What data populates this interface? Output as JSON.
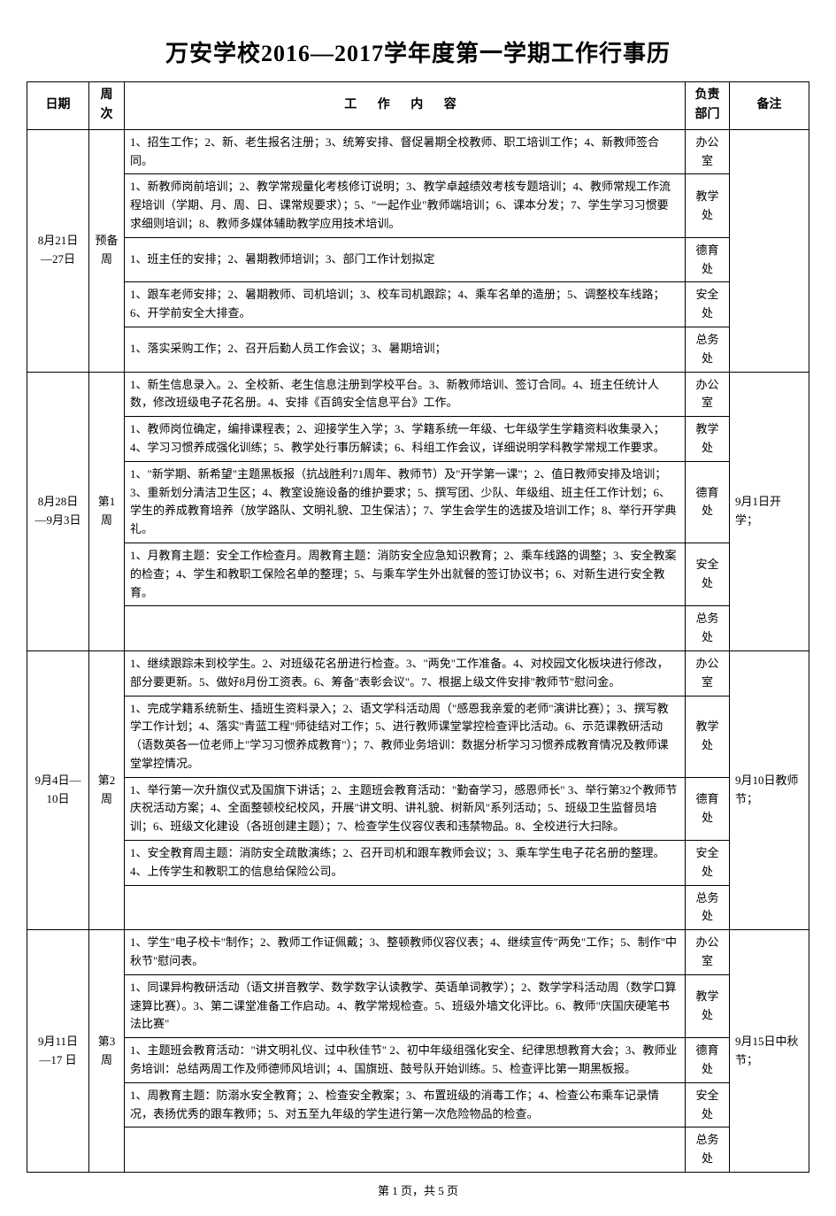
{
  "title": "万安学校2016—2017学年度第一学期工作行事历",
  "headers": {
    "date": "日期",
    "week": "周次",
    "content": "工 作 内 容",
    "dept": "负责部门",
    "note": "备注"
  },
  "depts": {
    "office": "办公室",
    "teaching": "教学处",
    "moral": "德育处",
    "safety": "安全处",
    "general": "总务处"
  },
  "weeks": [
    {
      "date": "8月21日—27日",
      "week": "预备周",
      "note": "",
      "rows": [
        {
          "dept": "office",
          "content": "1、招生工作；2、新、老生报名注册；3、统筹安排、督促暑期全校教师、职工培训工作；4、新教师签合同。"
        },
        {
          "dept": "teaching",
          "content": "1、新教师岗前培训；2、教学常规量化考核修订说明；3、教学卓越绩效考核专题培训；4、教师常规工作流程培训（学期、月、周、日、课常规要求）；5、\"一起作业\"教师端培训；6、课本分发；7、学生学习习惯要求细则培训；8、教师多媒体辅助教学应用技术培训。"
        },
        {
          "dept": "moral",
          "content": "1、班主任的安排；2、暑期教师培训；3、部门工作计划拟定"
        },
        {
          "dept": "safety",
          "content": "1、跟车老师安排；2、暑期教师、司机培训；3、校车司机跟踪；4、乘车名单的造册；5、调整校车线路；6、开学前安全大排查。"
        },
        {
          "dept": "general",
          "content": "1、落实采购工作；2、召开后勤人员工作会议；3、暑期培训；"
        }
      ]
    },
    {
      "date": "8月28日—9月3日",
      "week": "第1周",
      "note": "9月1日开学；",
      "rows": [
        {
          "dept": "office",
          "content": "1、新生信息录入。2、全校新、老生信息注册到学校平台。3、新教师培训、签订合同。4、班主任统计人数，修改班级电子花名册。4、安排《百鸽安全信息平台》工作。"
        },
        {
          "dept": "teaching",
          "content": "1、教师岗位确定，编排课程表；2、迎接学生入学；3、学籍系统一年级、七年级学生学籍资料收集录入；4、学习习惯养成强化训练；5、教学处行事历解读；6、科组工作会议，详细说明学科教学常规工作要求。"
        },
        {
          "dept": "moral",
          "content": "1、\"新学期、新希望\"主题黑板报（抗战胜利71周年、教师节）及\"开学第一课\"；2、值日教师安排及培训；3、重新划分清洁卫生区；4、教室设施设备的维护要求；5、撰写团、少队、年级组、班主任工作计划；6、学生的养成教育培养（放学路队、文明礼貌、卫生保洁）；7、学生会学生的选拔及培训工作；8、举行开学典礼。"
        },
        {
          "dept": "safety",
          "content": "1、月教育主题：安全工作检查月。周教育主题：消防安全应急知识教育；2、乘车线路的调整；3、安全教案的检查；4、学生和教职工保险名单的整理；5、与乘车学生外出就餐的签订协议书；6、对新生进行安全教育。"
        },
        {
          "dept": "general",
          "content": ""
        }
      ]
    },
    {
      "date": "9月4日—10日",
      "week": "第2周",
      "note": "9月10日教师节；",
      "rows": [
        {
          "dept": "office",
          "content": "1、继续跟踪未到校学生。2、对班级花名册进行检查。3、\"两免\"工作准备。4、对校园文化板块进行修改，部分要更新。5、做好8月份工资表。6、筹备\"表彰会议\"。7、根据上级文件安排\"教师节\"慰问金。"
        },
        {
          "dept": "teaching",
          "content": "1、完成学籍系统新生、插班生资料录入；2、语文学科活动周（\"感恩我亲爱的老师\"演讲比赛）；3、撰写教学工作计划；4、落实\"青蓝工程\"师徒结对工作；5、进行教师课堂掌控检查评比活动。6、示范课教研活动（语数英各一位老师上\"学习习惯养成教育\"）；7、教师业务培训：数据分析学习习惯养成教育情况及教师课堂掌控情况。"
        },
        {
          "dept": "moral",
          "content": "1、举行第一次升旗仪式及国旗下讲话；2、主题班会教育活动：\"勤奋学习，感恩师长\"  3、举行第32个教师节庆祝活动方案；4、全面整顿校纪校风，开展\"讲文明、讲礼貌、树新风\"系列活动；5、班级卫生监督员培训；6、班级文化建设（各班创建主题）；7、检查学生仪容仪表和违禁物品。8、全校进行大扫除。"
        },
        {
          "dept": "safety",
          "content": "1、安全教育周主题：消防安全疏散演练；2、召开司机和跟车教师会议；3、乘车学生电子花名册的整理。4、上传学生和教职工的信息给保险公司。"
        },
        {
          "dept": "general",
          "content": ""
        }
      ]
    },
    {
      "date": "9月11日—17 日",
      "week": "第3周",
      "note": "9月15日中秋节；",
      "rows": [
        {
          "dept": "office",
          "content": "1、学生\"电子校卡\"制作；2、教师工作证佩戴；3、整顿教师仪容仪表；4、继续宣传\"两免\"工作；5、制作\"中秋节\"慰问表。"
        },
        {
          "dept": "teaching",
          "content": "1、同课异构教研活动（语文拼音教学、数学数字认读教学、英语单词教学）；2、数学学科活动周（数学口算速算比赛）。3、第二课堂准备工作启动。4、教学常规检查。5、班级外墙文化评比。6、教师\"庆国庆硬笔书法比赛\""
        },
        {
          "dept": "moral",
          "content": "1、主题班会教育活动：\"讲文明礼仪、过中秋佳节\"  2、初中年级组强化安全、纪律思想教育大会；3、教师业务培训：总结两周工作及师德师风培训；4、国旗班、鼓号队开始训练。5、检查评比第一期黑板报。"
        },
        {
          "dept": "safety",
          "content": "1、周教育主题：防溺水安全教育；2、检查安全教案；3、布置班级的消毒工作；4、检查公布乘车记录情况，表扬优秀的跟车教师；5、对五至九年级的学生进行第一次危险物品的检查。"
        },
        {
          "dept": "general",
          "content": ""
        }
      ]
    }
  ],
  "footer": "第 1 页，共 5 页"
}
